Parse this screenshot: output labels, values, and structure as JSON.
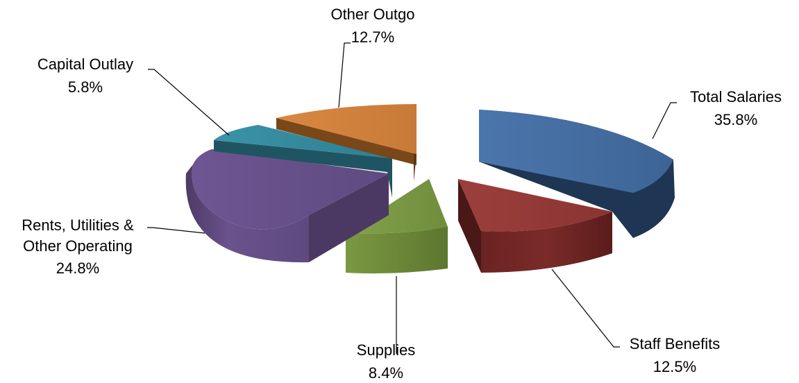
{
  "chart_data": {
    "type": "pie",
    "title": "",
    "style": "3d-exploded",
    "slices": [
      {
        "name": "Total Salaries",
        "label": "35.8%",
        "value": 35.8,
        "color": "#4a72a6"
      },
      {
        "name": "Staff Benefits",
        "label": "12.5%",
        "value": 12.5,
        "color": "#963d3b"
      },
      {
        "name": "Supplies",
        "label": "8.4%",
        "value": 8.4,
        "color": "#7c9a46"
      },
      {
        "name": "Rents, Utilities &",
        "name_line2": "Other Operating",
        "label": "24.8%",
        "value": 24.8,
        "color": "#68518a"
      },
      {
        "name": "Capital Outlay",
        "label": "5.8%",
        "value": 5.8,
        "color": "#348a9e"
      },
      {
        "name": "Other Outgo",
        "label": "12.7%",
        "value": 12.7,
        "color": "#d2803e"
      }
    ]
  }
}
